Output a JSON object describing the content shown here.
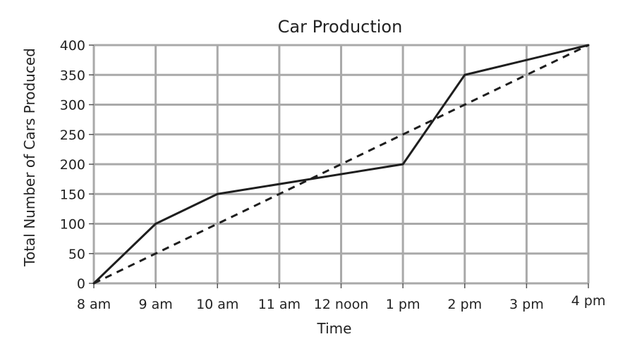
{
  "chart_data": {
    "type": "line",
    "title": "Car Production",
    "xlabel": "Time",
    "ylabel": "Total Number of Cars Produced",
    "categories": [
      "8 am",
      "9 am",
      "10 am",
      "11 am",
      "12 noon",
      "1 pm",
      "2 pm",
      "3 pm",
      "4 pm"
    ],
    "ylim": [
      0,
      400
    ],
    "yticks": [
      0,
      50,
      100,
      150,
      200,
      250,
      300,
      350,
      400
    ],
    "grid": true,
    "series": [
      {
        "style": "solid",
        "color": "#1e1e1e",
        "points": [
          [
            0,
            0
          ],
          [
            1,
            100
          ],
          [
            2,
            150
          ],
          [
            5,
            200
          ],
          [
            6,
            350
          ],
          [
            8,
            400
          ]
        ]
      },
      {
        "style": "dashed",
        "color": "#1e1e1e",
        "points": [
          [
            0,
            0
          ],
          [
            8,
            400
          ]
        ]
      }
    ]
  }
}
